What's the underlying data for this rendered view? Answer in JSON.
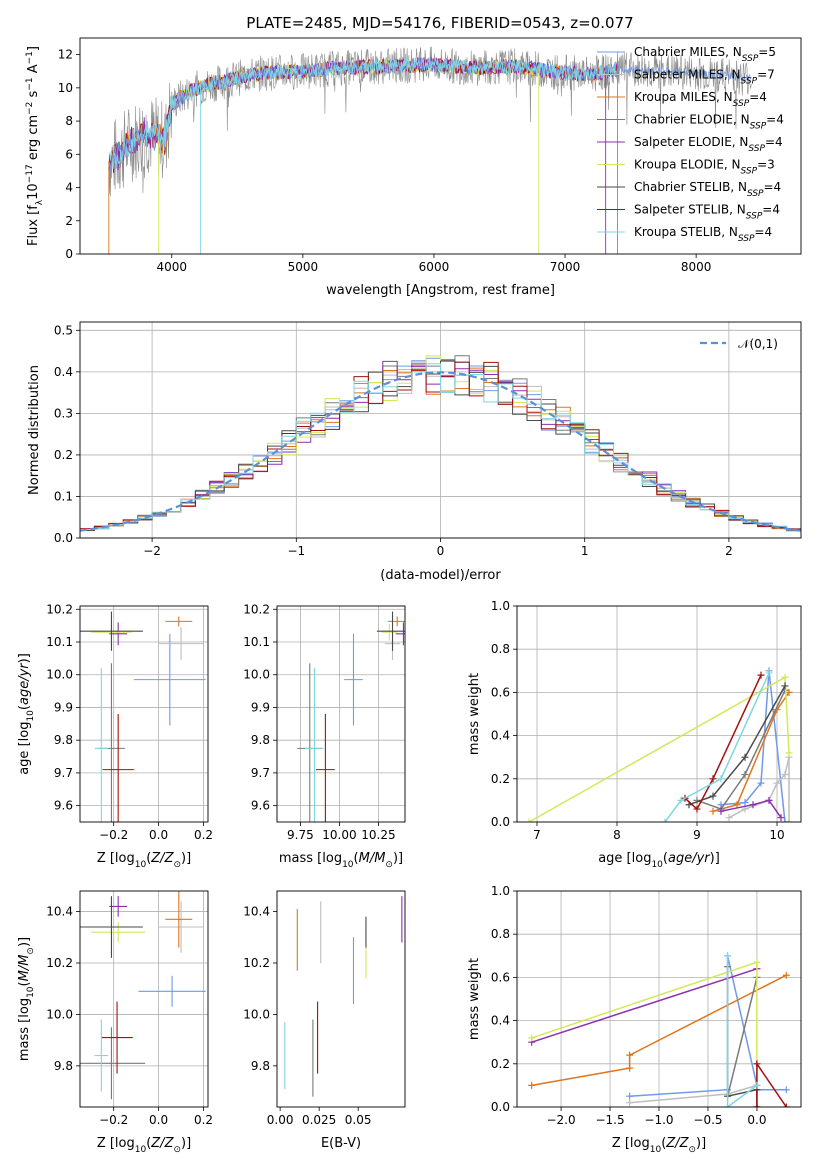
{
  "figure_title": "PLATE=2485, MJD=54176, FIBERID=0543, z=0.077",
  "series_colors": [
    "#6f9ae8",
    "#bebebe",
    "#e0751b",
    "#7a7a7a",
    "#8c2fb0",
    "#d4e85a",
    "#4a4a4a",
    "#a31010",
    "#7fd6e3"
  ],
  "chart_data": [
    {
      "id": "spectrum",
      "type": "line",
      "xlabel": "wavelength [Angstrom, rest frame]",
      "ylabel": "Flux [f_λ10^-17 erg cm^-2 s^-1 A^-1]",
      "xlim": [
        3300,
        8800
      ],
      "ylim": [
        0,
        13
      ],
      "xticks": [
        4000,
        5000,
        6000,
        7000,
        8000
      ],
      "yticks": [
        0,
        2,
        4,
        6,
        8,
        10,
        12
      ],
      "grid": false,
      "legend_position": "top-right",
      "legend": [
        "Chabrier MILES, N_SSP=5",
        "Salpeter MILES, N_SSP=7",
        "Kroupa MILES, N_SSP=4",
        "Chabrier ELODIE, N_SSP=4",
        "Salpeter ELODIE, N_SSP=4",
        "Kroupa ELODIE, N_SSP=3",
        "Chabrier STELIB, N_SSP=4",
        "Salpeter STELIB, N_SSP=4",
        "Kroupa STELIB, N_SSP=4"
      ],
      "continuum": {
        "x": [
          3520,
          3600,
          3700,
          3800,
          3900,
          3950,
          4000,
          4100,
          4200,
          4300,
          4500,
          4700,
          5000,
          5300,
          5600,
          6000,
          6300,
          6600,
          6900,
          7200,
          7400,
          8000,
          8400
        ],
        "y": [
          5.5,
          6.0,
          6.8,
          7.3,
          7.0,
          6.8,
          9.0,
          9.6,
          10.0,
          10.2,
          10.6,
          10.9,
          11.0,
          11.2,
          11.3,
          11.4,
          11.2,
          11.3,
          11.0,
          10.8,
          11.1,
          10.9,
          10.6
        ]
      }
    },
    {
      "id": "residual_histogram",
      "type": "step",
      "xlabel": "(data-model)/error",
      "ylabel": "Normed distribution",
      "xlim": [
        -2.5,
        2.5
      ],
      "ylim": [
        0,
        0.52
      ],
      "xticks": [
        -2,
        -1,
        0,
        1,
        2
      ],
      "yticks": [
        0.0,
        0.1,
        0.2,
        0.3,
        0.4,
        0.5
      ],
      "grid": true,
      "legend_position": "top-right",
      "reference_curve": {
        "label": "𝒩(0,1)",
        "mean": 0,
        "sigma": 1
      },
      "bin_edges": [
        -2.5,
        2.5
      ],
      "bin_width": 0.1
    },
    {
      "id": "age_vs_Z",
      "type": "scatter",
      "xlabel": "Z [log10(Z/Z⊙)]",
      "ylabel": "age  [log10(age/yr)]",
      "xlim": [
        -0.35,
        0.22
      ],
      "ylim": [
        9.55,
        10.21
      ],
      "xticks": [
        -0.2,
        0.0,
        0.2
      ],
      "yticks": [
        9.6,
        9.7,
        9.8,
        9.9,
        10.0,
        10.1,
        10.2
      ],
      "grid": true,
      "points": [
        {
          "x": 0.05,
          "y": 9.985,
          "xerr": 0.16,
          "yerr": 0.14
        },
        {
          "x": 0.1,
          "y": 10.095,
          "xerr": 0.1,
          "yerr": 0.05
        },
        {
          "x": 0.09,
          "y": 10.163,
          "xerr": 0.06,
          "yerr": 0.015
        },
        {
          "x": -0.21,
          "y": 9.775,
          "xerr": 0.06,
          "yerr": 0.26
        },
        {
          "x": -0.18,
          "y": 10.125,
          "xerr": 0.04,
          "yerr": 0.035
        },
        {
          "x": -0.21,
          "y": 10.13,
          "xerr": 0.09,
          "yerr": 0.025
        },
        {
          "x": -0.21,
          "y": 10.133,
          "xerr": 0.14,
          "yerr": 0.06
        },
        {
          "x": -0.18,
          "y": 9.71,
          "xerr": 0.07,
          "yerr": 0.17
        },
        {
          "x": -0.255,
          "y": 9.775,
          "xerr": 0.03,
          "yerr": 0.245
        }
      ]
    },
    {
      "id": "age_vs_mass",
      "type": "scatter",
      "xlabel": "mass [log10(M/M⊙)]",
      "ylabel": "",
      "xlim": [
        9.6,
        10.42
      ],
      "ylim": [
        9.55,
        10.21
      ],
      "xticks": [
        9.75,
        10.0,
        10.25
      ],
      "xtick_labels": [
        "9.75",
        "10.00",
        "10.25"
      ],
      "yticks": [
        9.6,
        9.7,
        9.8,
        9.9,
        10.0,
        10.1,
        10.2
      ],
      "grid": true,
      "points": [
        {
          "x": 10.09,
          "y": 9.985,
          "yerr": 0.14,
          "xerr": 0.06
        },
        {
          "x": 10.34,
          "y": 10.095,
          "yerr": 0.05,
          "xerr": 0.05
        },
        {
          "x": 10.37,
          "y": 10.163,
          "yerr": 0.015,
          "xerr": 0.06
        },
        {
          "x": 9.81,
          "y": 9.775,
          "yerr": 0.26,
          "xerr": 0.08
        },
        {
          "x": 10.41,
          "y": 10.125,
          "yerr": 0.035,
          "xerr": 0.05
        },
        {
          "x": 10.32,
          "y": 10.13,
          "yerr": 0.025,
          "xerr": 0.05
        },
        {
          "x": 10.34,
          "y": 10.133,
          "yerr": 0.06,
          "xerr": 0.1
        },
        {
          "x": 9.91,
          "y": 9.71,
          "yerr": 0.17,
          "xerr": 0.06
        },
        {
          "x": 9.84,
          "y": 9.775,
          "yerr": 0.245,
          "xerr": 0.06
        }
      ]
    },
    {
      "id": "weight_vs_age",
      "type": "line",
      "xlabel": "age  [log10(age/yr)]",
      "ylabel": "mass weight",
      "xlim": [
        6.75,
        10.3
      ],
      "ylim": [
        0,
        1.0
      ],
      "xticks": [
        7,
        8,
        9,
        10
      ],
      "yticks": [
        0.0,
        0.2,
        0.4,
        0.6,
        0.8,
        1.0
      ],
      "grid": true,
      "series": [
        {
          "x": [
            9.3,
            9.6,
            9.8,
            9.9,
            10.1
          ],
          "y": [
            0.08,
            0.09,
            0.18,
            0.7,
            0.0
          ]
        },
        {
          "x": [
            9.4,
            9.6,
            9.9,
            10.0,
            10.1,
            10.15,
            10.15
          ],
          "y": [
            0.02,
            0.06,
            0.1,
            0.18,
            0.22,
            0.3,
            0.0
          ]
        },
        {
          "x": [
            9.2,
            9.5,
            10.0,
            10.15
          ],
          "y": [
            0.05,
            0.08,
            0.52,
            0.6
          ]
        },
        {
          "x": [
            9.0,
            9.3,
            9.6,
            10.1
          ],
          "y": [
            0.1,
            0.06,
            0.22,
            0.61
          ]
        },
        {
          "x": [
            9.3,
            9.7,
            9.9,
            10.05
          ],
          "y": [
            0.05,
            0.08,
            0.1,
            0.02
          ]
        },
        {
          "x": [
            6.9,
            10.1,
            10.15
          ],
          "y": [
            0.0,
            0.67,
            0.32
          ]
        },
        {
          "x": [
            8.9,
            9.2,
            9.6,
            10.1
          ],
          "y": [
            0.08,
            0.12,
            0.3,
            0.63
          ]
        },
        {
          "x": [
            8.85,
            9.0,
            9.2,
            9.8
          ],
          "y": [
            0.11,
            0.06,
            0.2,
            0.68
          ]
        },
        {
          "x": [
            8.6,
            8.8,
            9.3,
            9.9
          ],
          "y": [
            0.0,
            0.1,
            0.2,
            0.69
          ]
        }
      ]
    },
    {
      "id": "mass_vs_Z",
      "type": "scatter",
      "xlabel": "Z [log10(Z/Z⊙)]",
      "ylabel": "mass [log10(M/M⊙)]",
      "xlim": [
        -0.35,
        0.22
      ],
      "ylim": [
        9.64,
        10.48
      ],
      "xticks": [
        -0.2,
        0.0,
        0.2
      ],
      "yticks": [
        9.8,
        10.0,
        10.2,
        10.4
      ],
      "grid": true,
      "points": [
        {
          "x": 0.06,
          "y": 10.09,
          "xerr": 0.15,
          "yerr": 0.06
        },
        {
          "x": 0.1,
          "y": 10.34,
          "xerr": 0.1,
          "yerr": 0.1
        },
        {
          "x": 0.09,
          "y": 10.37,
          "xerr": 0.06,
          "yerr": 0.11
        },
        {
          "x": -0.21,
          "y": 9.81,
          "xerr": 0.15,
          "yerr": 0.14
        },
        {
          "x": -0.18,
          "y": 10.42,
          "xerr": 0.04,
          "yerr": 0.04
        },
        {
          "x": -0.18,
          "y": 10.32,
          "xerr": 0.12,
          "yerr": 0.04
        },
        {
          "x": -0.21,
          "y": 10.34,
          "xerr": 0.14,
          "yerr": 0.12
        },
        {
          "x": -0.185,
          "y": 9.91,
          "xerr": 0.07,
          "yerr": 0.14
        },
        {
          "x": -0.255,
          "y": 9.84,
          "xerr": 0.03,
          "yerr": 0.14
        }
      ]
    },
    {
      "id": "mass_vs_EBV",
      "type": "scatter",
      "xlabel": "E(B-V)",
      "ylabel": "",
      "xlim": [
        -0.002,
        0.08
      ],
      "ylim": [
        9.64,
        10.48
      ],
      "xticks": [
        0.0,
        0.025,
        0.05
      ],
      "xtick_labels": [
        "0.00",
        "0.025",
        "0.05"
      ],
      "yticks": [
        9.8,
        10.0,
        10.2,
        10.4
      ],
      "grid": false,
      "points": [
        {
          "x": 0.047,
          "y": 10.17,
          "yerr": 0.13
        },
        {
          "x": 0.026,
          "y": 10.32,
          "yerr": 0.12
        },
        {
          "x": 0.011,
          "y": 10.29,
          "yerr": 0.12
        },
        {
          "x": 0.021,
          "y": 9.83,
          "yerr": 0.15
        },
        {
          "x": 0.078,
          "y": 10.37,
          "yerr": 0.09
        },
        {
          "x": 0.055,
          "y": 10.24,
          "yerr": 0.1
        },
        {
          "x": 0.055,
          "y": 10.32,
          "yerr": 0.06
        },
        {
          "x": 0.024,
          "y": 9.91,
          "yerr": 0.14
        },
        {
          "x": 0.003,
          "y": 9.84,
          "yerr": 0.13
        }
      ]
    },
    {
      "id": "weight_vs_Z",
      "type": "line",
      "xlabel": "Z [log10(Z/Z⊙)]",
      "ylabel": "mass weight",
      "xlim": [
        -2.45,
        0.45
      ],
      "ylim": [
        0,
        1.0
      ],
      "xticks": [
        -2.0,
        -1.5,
        -1.0,
        -0.5,
        0.0
      ],
      "yticks": [
        0.0,
        0.2,
        0.4,
        0.6,
        0.8,
        1.0
      ],
      "grid": true,
      "series": [
        {
          "x": [
            -1.3,
            -0.3,
            -0.3,
            0.0,
            0.0,
            0.3
          ],
          "y": [
            0.05,
            0.08,
            0.7,
            0.1,
            0.08,
            0.08
          ]
        },
        {
          "x": [
            -1.3,
            -0.3,
            0.0
          ],
          "y": [
            0.02,
            0.06,
            0.1
          ]
        },
        {
          "x": [
            -2.3,
            -1.3,
            -1.3,
            0.3
          ],
          "y": [
            0.1,
            0.18,
            0.24,
            0.61
          ]
        },
        {
          "x": [
            -0.3,
            -0.3,
            0.0
          ],
          "y": [
            0.65,
            0.05,
            0.6
          ]
        },
        {
          "x": [
            -2.3,
            0.0
          ],
          "y": [
            0.3,
            0.64
          ]
        },
        {
          "x": [
            -2.3,
            0.0,
            0.0
          ],
          "y": [
            0.32,
            0.67,
            0.0
          ]
        },
        {
          "x": [
            -0.3,
            0.0,
            0.0
          ],
          "y": [
            0.05,
            0.08,
            0.0
          ]
        },
        {
          "x": [
            0.0,
            0.0,
            0.3
          ],
          "y": [
            0.0,
            0.2,
            0.0
          ]
        },
        {
          "x": [
            -0.3,
            -0.3,
            0.0
          ],
          "y": [
            0.7,
            0.0,
            0.1
          ]
        }
      ]
    }
  ]
}
